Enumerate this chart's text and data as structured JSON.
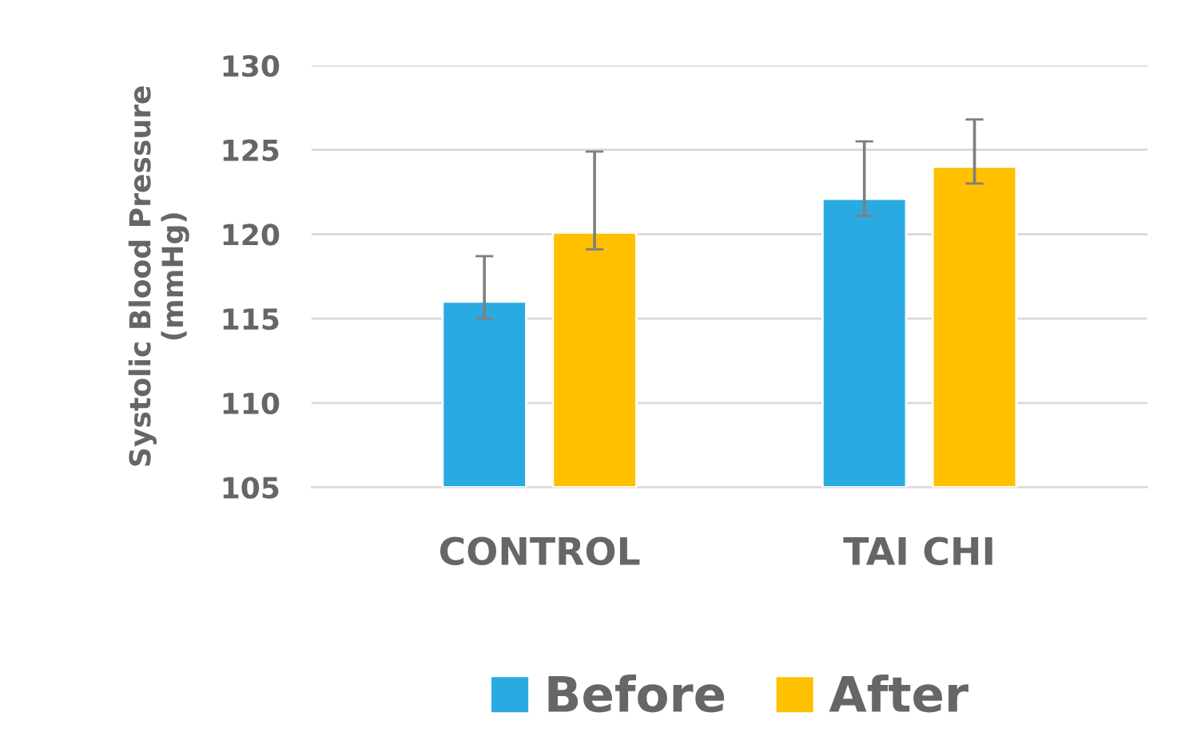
{
  "chart_data": {
    "type": "bar",
    "ylabel": "Systolic Blood Pressure\n(mmHg)",
    "categories": [
      "CONTROL",
      "TAI CHI"
    ],
    "series": [
      {
        "name": "Before",
        "color": "#29abe2",
        "values": [
          116.0,
          122.1
        ],
        "errors": [
          [
            115.0,
            118.7
          ],
          [
            121.1,
            125.5
          ]
        ]
      },
      {
        "name": "After",
        "color": "#ffc000",
        "values": [
          120.1,
          124.0
        ],
        "errors": [
          [
            119.1,
            124.9
          ],
          [
            123.0,
            126.8
          ]
        ]
      }
    ],
    "ylim": [
      105,
      130
    ],
    "yticks": [
      105,
      110,
      115,
      120,
      125,
      130
    ],
    "grid": "y",
    "legend": "bottom"
  }
}
